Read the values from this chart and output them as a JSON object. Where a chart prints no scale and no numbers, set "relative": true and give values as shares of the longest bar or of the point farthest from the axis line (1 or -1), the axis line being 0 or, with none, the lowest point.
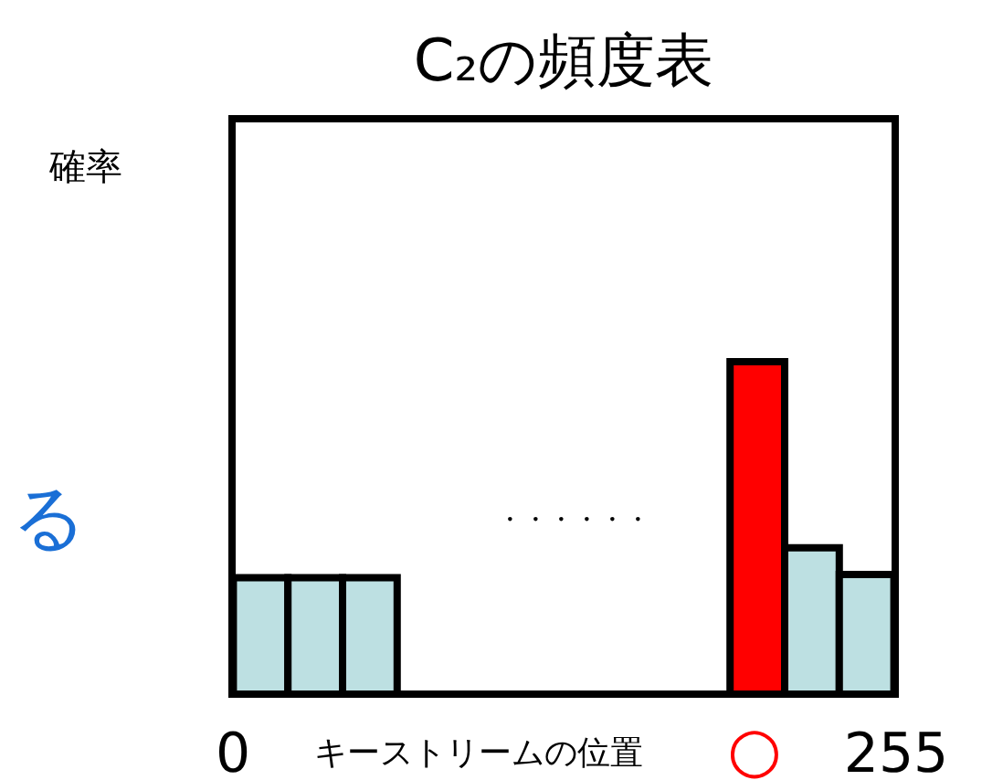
{
  "chart_data": {
    "type": "bar",
    "title": "C₂の頻度表",
    "xlabel": "キーストリームの位置",
    "relative": true,
    "x": [
      11,
      32,
      53,
      202,
      223,
      244
    ],
    "xlim": [
      0,
      255
    ],
    "xticks": [
      0,
      255
    ],
    "values": [
      0.35,
      0.35,
      0.35,
      1,
      0.44,
      0.36
    ],
    "colors": [
      "#bde0e2",
      "#bde0e2",
      "#bde0e2",
      "#ff0000",
      "#bde0e2",
      "#bde0e2"
    ],
    "annotations": [
      "確率",
      "○",
      "・・・・・・",
      "る"
    ]
  }
}
